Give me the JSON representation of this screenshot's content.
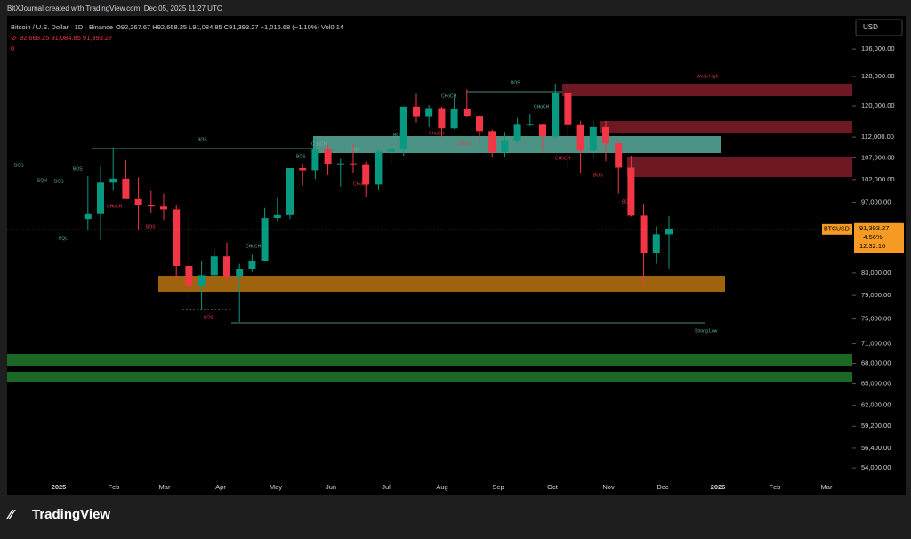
{
  "header": {
    "credit": "BitXJournal created with TradingView.com, Dec 05, 2025 11:27 UTC",
    "symbol": "Bitcoin / U.S. Dollar · 1D · Binance",
    "ohlc": "O92,267.67 H92,668.25 L91,084.85 C91,393.27 −1,016.68 (−1.10%) Vol0.14",
    "indicator": "92,668.25 91,084.85 91,393.27",
    "indicator2": "0"
  },
  "chart_data": {
    "type": "candlestick",
    "currency": "USD",
    "log_scale": true,
    "ylim": [
      52550,
      145700
    ],
    "yticks": [
      {
        "value": 136000,
        "label": "136,000.00"
      },
      {
        "value": 128000,
        "label": "128,000.00"
      },
      {
        "value": 120000,
        "label": "120,000.00"
      },
      {
        "value": 112000,
        "label": "112,000.00"
      },
      {
        "value": 107000,
        "label": "107,000.00"
      },
      {
        "value": 102000,
        "label": "102,000.00"
      },
      {
        "value": 97000,
        "label": "97,000.00"
      },
      {
        "value": 83000,
        "label": "83,000.00"
      },
      {
        "value": 79000,
        "label": "79,000.00"
      },
      {
        "value": 75000,
        "label": "75,000.00"
      },
      {
        "value": 71000,
        "label": "71,000.00"
      },
      {
        "value": 68000,
        "label": "68,000.00"
      },
      {
        "value": 65000,
        "label": "65,000.00"
      },
      {
        "value": 62000,
        "label": "62,000.00"
      },
      {
        "value": 59200,
        "label": "59,200.00"
      },
      {
        "value": 56400,
        "label": "56,400.00"
      },
      {
        "value": 54000,
        "label": "54,000.00"
      }
    ],
    "months": [
      "2025",
      "Feb",
      "Mar",
      "Apr",
      "May",
      "Jun",
      "Jul",
      "Aug",
      "Sep",
      "Oct",
      "Nov",
      "Dec",
      "2026",
      "Feb",
      "Mar"
    ],
    "up_color": "#089981",
    "down_color": "#f23645",
    "open": [
      93500,
      94500,
      101300,
      102200,
      97700,
      96500,
      96100,
      95500,
      84300,
      80700,
      82600,
      86100,
      82400,
      83700,
      85200,
      93700,
      94300,
      104600,
      104100,
      109000,
      105600,
      105700,
      105500,
      100900,
      108400,
      109200,
      119800,
      117300,
      119400,
      114200,
      119300,
      117400,
      113500,
      108300,
      111200,
      115300,
      115300,
      112200,
      123500,
      115200,
      108700,
      114500,
      110500,
      104700,
      94200,
      86800,
      90400
    ],
    "high": [
      102700,
      105000,
      109500,
      106500,
      102500,
      99500,
      98900,
      96500,
      95000,
      85200,
      87400,
      88800,
      84700,
      86400,
      95800,
      97900,
      104000,
      105700,
      111900,
      110500,
      106800,
      110400,
      106100,
      108900,
      110600,
      118900,
      123200,
      120200,
      119800,
      122300,
      124500,
      117600,
      113900,
      113300,
      116800,
      117900,
      115400,
      125800,
      126200,
      116100,
      116400,
      116100,
      111000,
      107500,
      96700,
      92000,
      94100
    ],
    "low": [
      91200,
      89300,
      99500,
      97800,
      91200,
      94800,
      93300,
      82200,
      78200,
      76600,
      82000,
      81500,
      74500,
      83200,
      85100,
      92900,
      93500,
      100700,
      102100,
      103000,
      100400,
      103400,
      98200,
      99600,
      105300,
      107500,
      115700,
      114500,
      112000,
      114000,
      117200,
      110700,
      107300,
      107300,
      110600,
      114700,
      108600,
      111600,
      104500,
      103500,
      106700,
      106200,
      98900,
      94000,
      80600,
      84700,
      83800
    ],
    "close": [
      94500,
      101300,
      102200,
      97700,
      96500,
      96100,
      95500,
      84300,
      80700,
      82600,
      86100,
      82400,
      83700,
      85200,
      93700,
      94300,
      104600,
      104100,
      109000,
      105600,
      105700,
      105500,
      100900,
      108400,
      109200,
      119800,
      117300,
      119400,
      114200,
      119300,
      117400,
      113500,
      108300,
      111200,
      115300,
      115300,
      112200,
      123500,
      115200,
      108700,
      114500,
      110500,
      104700,
      94200,
      86800,
      90400,
      91393.27
    ],
    "last": {
      "symbol": "BTCUSD",
      "price": 91393.27,
      "price_label": "91,393.27",
      "change": "−4.56%",
      "countdown": "12:32:16"
    },
    "annotations": [
      "BOS",
      "EQH",
      "BOS",
      "BOS",
      "CHoCH",
      "BOS",
      "EQL",
      "BOS",
      "BOS",
      "CHoCH",
      "BOS",
      "CHoCH",
      "BOS",
      "CHoCH",
      "BOS",
      "CHoCH",
      "BOS",
      "CHoCH",
      "CHoCH",
      "CHoCH",
      "CHoCH",
      "BOS",
      "BOS",
      "Weak High",
      "Strong Low"
    ]
  },
  "footer": {
    "logo": "TradingView"
  }
}
